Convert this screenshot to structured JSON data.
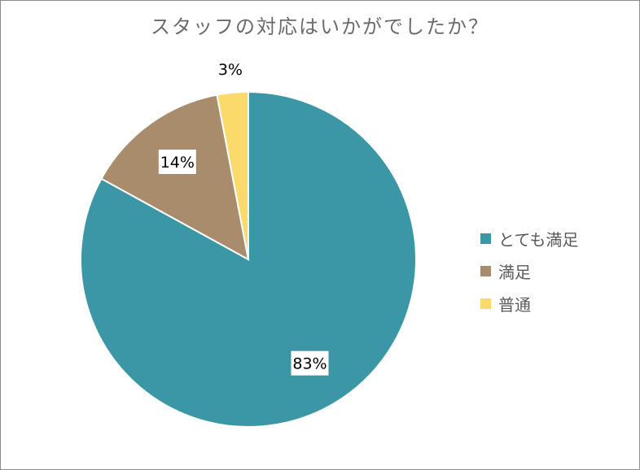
{
  "chart_data": {
    "type": "pie",
    "title": "スタッフの対応はいかがでしたか？",
    "categories": [
      "とても満足",
      "満足",
      "普通"
    ],
    "values": [
      83,
      14,
      3
    ],
    "labels": [
      "83%",
      "14%",
      "3%"
    ],
    "colors": [
      "#3b97a6",
      "#a88c6c",
      "#fcd96b"
    ],
    "legend_position": "right"
  }
}
